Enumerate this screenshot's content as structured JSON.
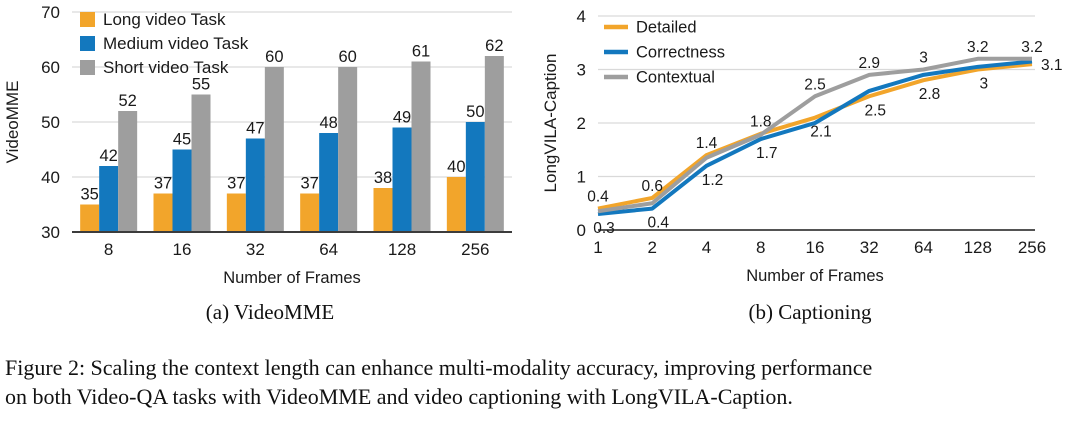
{
  "figure": {
    "subcaption_a": "(a) VideoMME",
    "subcaption_b": "(b) Captioning",
    "caption_line1": "Figure 2: Scaling the context length can enhance multi-modality accuracy, improving performance",
    "caption_line2": "on both Video-QA tasks with VideoMME and video captioning with LongVILA-Caption."
  },
  "colors": {
    "orange": "#F2A52B",
    "blue": "#1378BE",
    "gray": "#9E9E9E",
    "grid": "#D9D9D9",
    "axis": "#3C3C3C",
    "text": "#1A1A1A"
  },
  "chart_data": [
    {
      "id": "videomme",
      "type": "bar",
      "title": "(a) VideoMME",
      "xlabel": "Number of Frames",
      "ylabel": "VideoMME",
      "categories": [
        "8",
        "16",
        "32",
        "64",
        "128",
        "256"
      ],
      "series": [
        {
          "name": "Long video Task",
          "color_key": "orange",
          "values": [
            35,
            37,
            37,
            37,
            38,
            40
          ]
        },
        {
          "name": "Medium video Task",
          "color_key": "blue",
          "values": [
            42,
            45,
            47,
            48,
            49,
            50
          ]
        },
        {
          "name": "Short video Task",
          "color_key": "gray",
          "values": [
            52,
            55,
            60,
            60,
            61,
            62
          ]
        }
      ],
      "ylim": [
        30,
        70
      ],
      "yticks": [
        30,
        40,
        50,
        60,
        70
      ],
      "grid": true,
      "legend_position": "top-left",
      "bar_labels": true
    },
    {
      "id": "captioning",
      "type": "line",
      "title": "(b) Captioning",
      "xlabel": "Number of Frames",
      "ylabel": "LongVILA-Caption",
      "categories": [
        "1",
        "2",
        "4",
        "8",
        "16",
        "32",
        "64",
        "128",
        "256"
      ],
      "series": [
        {
          "name": "Detailed",
          "color_key": "orange",
          "values": [
            0.4,
            0.6,
            1.4,
            1.8,
            2.1,
            2.5,
            2.8,
            3.0,
            3.1
          ]
        },
        {
          "name": "Correctness",
          "color_key": "blue",
          "values": [
            0.3,
            0.4,
            1.2,
            1.7,
            2.0,
            2.6,
            2.9,
            3.05,
            3.15
          ]
        },
        {
          "name": "Contextual",
          "color_key": "gray",
          "values": [
            0.35,
            0.5,
            1.35,
            1.78,
            2.5,
            2.9,
            3.0,
            3.2,
            3.2
          ]
        }
      ],
      "ylim": [
        0,
        4
      ],
      "yticks": [
        0,
        1,
        2,
        3,
        4
      ],
      "grid": true,
      "legend_position": "top-left",
      "point_labels": [
        {
          "series": "Detailed",
          "x": "1",
          "text": "0.4",
          "placement": "above"
        },
        {
          "series": "Correctness",
          "x": "1",
          "text": "0.3",
          "placement": "below"
        },
        {
          "series": "Detailed",
          "x": "2",
          "text": "0.6",
          "placement": "above"
        },
        {
          "series": "Correctness",
          "x": "2",
          "text": "0.4",
          "placement": "below"
        },
        {
          "series": "Detailed",
          "x": "4",
          "text": "1.4",
          "placement": "above"
        },
        {
          "series": "Correctness",
          "x": "4",
          "text": "1.2",
          "placement": "below"
        },
        {
          "series": "Detailed",
          "x": "8",
          "text": "1.8",
          "placement": "above"
        },
        {
          "series": "Correctness",
          "x": "8",
          "text": "1.7",
          "placement": "below"
        },
        {
          "series": "Contextual",
          "x": "16",
          "text": "2.5",
          "placement": "above"
        },
        {
          "series": "Detailed",
          "x": "16",
          "text": "2.1",
          "placement": "below"
        },
        {
          "series": "Contextual",
          "x": "32",
          "text": "2.9",
          "placement": "above"
        },
        {
          "series": "Detailed",
          "x": "32",
          "text": "2.5",
          "placement": "below"
        },
        {
          "series": "Contextual",
          "x": "64",
          "text": "3",
          "placement": "above"
        },
        {
          "series": "Detailed",
          "x": "64",
          "text": "2.8",
          "placement": "below"
        },
        {
          "series": "Contextual",
          "x": "128",
          "text": "3.2",
          "placement": "above"
        },
        {
          "series": "Detailed",
          "x": "128",
          "text": "3",
          "placement": "below"
        },
        {
          "series": "Contextual",
          "x": "256",
          "text": "3.2",
          "placement": "above"
        },
        {
          "series": "Detailed",
          "x": "256",
          "text": "3.1",
          "placement": "right"
        }
      ]
    }
  ]
}
